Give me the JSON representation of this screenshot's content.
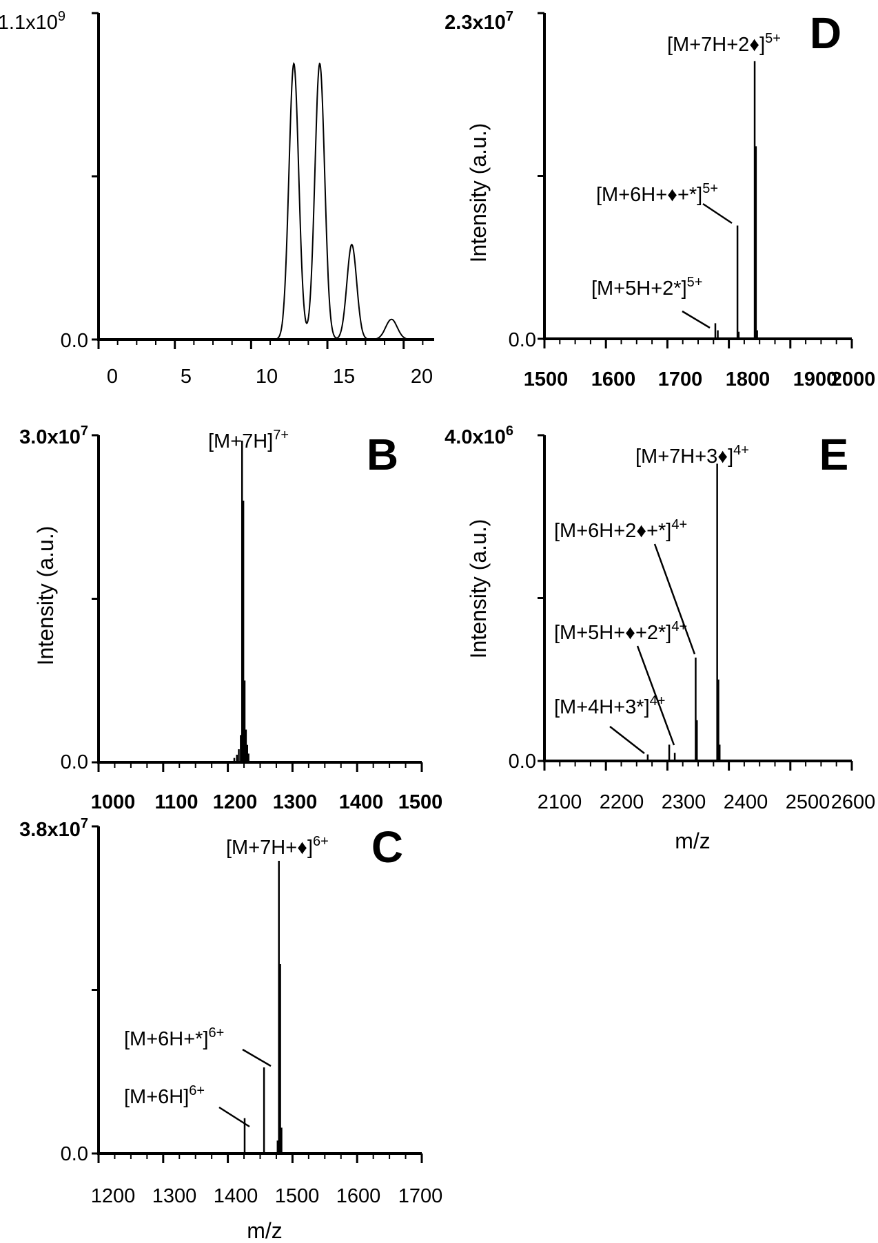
{
  "figure": {
    "panels": [
      {
        "id": "A",
        "panel_letter": "",
        "ylabel": "",
        "xlabel": "",
        "y_max_label": "1.1x10",
        "y_max_exp": "9",
        "y_zero_label": "0.0",
        "x_tick_labels": [
          "0",
          "5",
          "10",
          "15",
          "20"
        ],
        "bold_ticks": false
      },
      {
        "id": "B",
        "panel_letter": "B",
        "ylabel": "Intensity  (a.u.)",
        "xlabel": "",
        "y_max_label": "3.0x10",
        "y_max_exp": "7",
        "y_zero_label": "0.0",
        "x_tick_labels": [
          "1000",
          "1100",
          "1200",
          "1300",
          "1400",
          "1500"
        ],
        "bold_ticks": true,
        "peak_labels": [
          {
            "text": "[M+7H]",
            "sup": "7+"
          }
        ]
      },
      {
        "id": "C",
        "panel_letter": "C",
        "ylabel": "",
        "xlabel": "m/z",
        "y_max_label": "3.8x10",
        "y_max_exp": "7",
        "y_zero_label": "0.0",
        "x_tick_labels": [
          "1200",
          "1300",
          "1400",
          "1500",
          "1600",
          "1700"
        ],
        "bold_ticks": false,
        "peak_labels": [
          {
            "text": "[M+7H+♦]",
            "sup": "6+"
          },
          {
            "text": "[M+6H+*]",
            "sup": "6+"
          },
          {
            "text": "[M+6H]",
            "sup": "6+"
          }
        ]
      },
      {
        "id": "D",
        "panel_letter": "D",
        "ylabel": "Intensity  (a.u.)",
        "xlabel": "",
        "y_max_label": "2.3x10",
        "y_max_exp": "7",
        "y_zero_label": "0.0",
        "x_tick_labels": [
          "1500",
          "1600",
          "1700",
          "1800",
          "1900",
          "2000"
        ],
        "bold_ticks": true,
        "peak_labels": [
          {
            "text": "[M+7H+2♦]",
            "sup": "5+"
          },
          {
            "text": "[M+6H+♦+*]",
            "sup": "5+"
          },
          {
            "text": "[M+5H+2*]",
            "sup": "5+"
          }
        ]
      },
      {
        "id": "E",
        "panel_letter": "E",
        "ylabel": "Intensity  (a.u.)",
        "xlabel": "m/z",
        "y_max_label": "4.0x10",
        "y_max_exp": "6",
        "y_zero_label": "0.0",
        "x_tick_labels": [
          "2100",
          "2200",
          "2300",
          "2400",
          "2500",
          "2600"
        ],
        "bold_ticks": false,
        "peak_labels": [
          {
            "text": "[M+7H+3♦]",
            "sup": "4+"
          },
          {
            "text": "[M+6H+2♦+*]",
            "sup": "4+"
          },
          {
            "text": "[M+5H+♦+2*]",
            "sup": "4+"
          },
          {
            "text": "[M+4H+3*]",
            "sup": "4+"
          }
        ]
      }
    ]
  },
  "chart_data": [
    {
      "panel": "A",
      "type": "line",
      "xlim": [
        0,
        22
      ],
      "ylim": [
        0,
        1100000000.0
      ],
      "x_ticks": [
        0,
        5,
        10,
        15,
        20
      ],
      "peaks": [
        {
          "x": 12.8,
          "y": 930000000.0,
          "width": 0.32
        },
        {
          "x": 14.5,
          "y": 930000000.0,
          "width": 0.32
        },
        {
          "x": 16.6,
          "y": 320000000.0,
          "width": 0.32
        },
        {
          "x": 19.2,
          "y": 68000000.0,
          "width": 0.38
        }
      ]
    },
    {
      "panel": "B",
      "type": "bar",
      "xlabel": "",
      "ylabel": "Intensity  (a.u.)",
      "xlim": [
        1000,
        1500
      ],
      "ylim": [
        0,
        30000000.0
      ],
      "x_ticks": [
        1000,
        1100,
        1200,
        1300,
        1400,
        1500
      ],
      "peaks": [
        {
          "x": 1222,
          "y": 29500000.0
        },
        {
          "x": 1224,
          "y": 24000000.0
        },
        {
          "x": 1226,
          "y": 7500000.0
        },
        {
          "x": 1220,
          "y": 2500000.0
        },
        {
          "x": 1228,
          "y": 3000000.0
        },
        {
          "x": 1230,
          "y": 1600000.0
        },
        {
          "x": 1217,
          "y": 1200000.0
        },
        {
          "x": 1214,
          "y": 700000.0
        },
        {
          "x": 1232,
          "y": 800000.0
        },
        {
          "x": 1210,
          "y": 400000.0
        }
      ]
    },
    {
      "panel": "C",
      "type": "bar",
      "xlabel": "m/z",
      "ylabel": "",
      "xlim": [
        1200,
        1700
      ],
      "ylim": [
        0,
        38000000.0
      ],
      "x_ticks": [
        1200,
        1300,
        1400,
        1500,
        1600,
        1700
      ],
      "peaks": [
        {
          "x": 1426,
          "y": 4100000.0
        },
        {
          "x": 1456,
          "y": 10000000.0
        },
        {
          "x": 1479,
          "y": 34000000.0
        },
        {
          "x": 1481,
          "y": 22000000.0
        },
        {
          "x": 1483,
          "y": 3000000.0
        },
        {
          "x": 1477,
          "y": 1500000.0
        }
      ]
    },
    {
      "panel": "D",
      "type": "bar",
      "xlabel": "",
      "ylabel": "Intensity  (a.u.)",
      "xlim": [
        1500,
        2000
      ],
      "ylim": [
        0,
        23000000.0
      ],
      "x_ticks": [
        1500,
        1600,
        1700,
        1800,
        1900,
        2000
      ],
      "peaks": [
        {
          "x": 1778,
          "y": 1100000.0
        },
        {
          "x": 1782,
          "y": 600000.0
        },
        {
          "x": 1814,
          "y": 8000000.0
        },
        {
          "x": 1842,
          "y": 19600000.0
        },
        {
          "x": 1844,
          "y": 13600000.0
        },
        {
          "x": 1846,
          "y": 600000.0
        },
        {
          "x": 1816,
          "y": 500000.0
        }
      ]
    },
    {
      "panel": "E",
      "type": "bar",
      "xlabel": "m/z",
      "ylabel": "Intensity  (a.u.)",
      "xlim": [
        2100,
        2600
      ],
      "ylim": [
        0,
        4000000.0
      ],
      "x_ticks": [
        2100,
        2200,
        2300,
        2400,
        2500,
        2600
      ],
      "peaks": [
        {
          "x": 2268,
          "y": 80000.0
        },
        {
          "x": 2303,
          "y": 200000.0
        },
        {
          "x": 2312,
          "y": 100000.0
        },
        {
          "x": 2346,
          "y": 1270000.0
        },
        {
          "x": 2348,
          "y": 500000.0
        },
        {
          "x": 2381,
          "y": 3650000.0
        },
        {
          "x": 2383,
          "y": 1000000.0
        },
        {
          "x": 2385,
          "y": 200000.0
        }
      ]
    }
  ]
}
